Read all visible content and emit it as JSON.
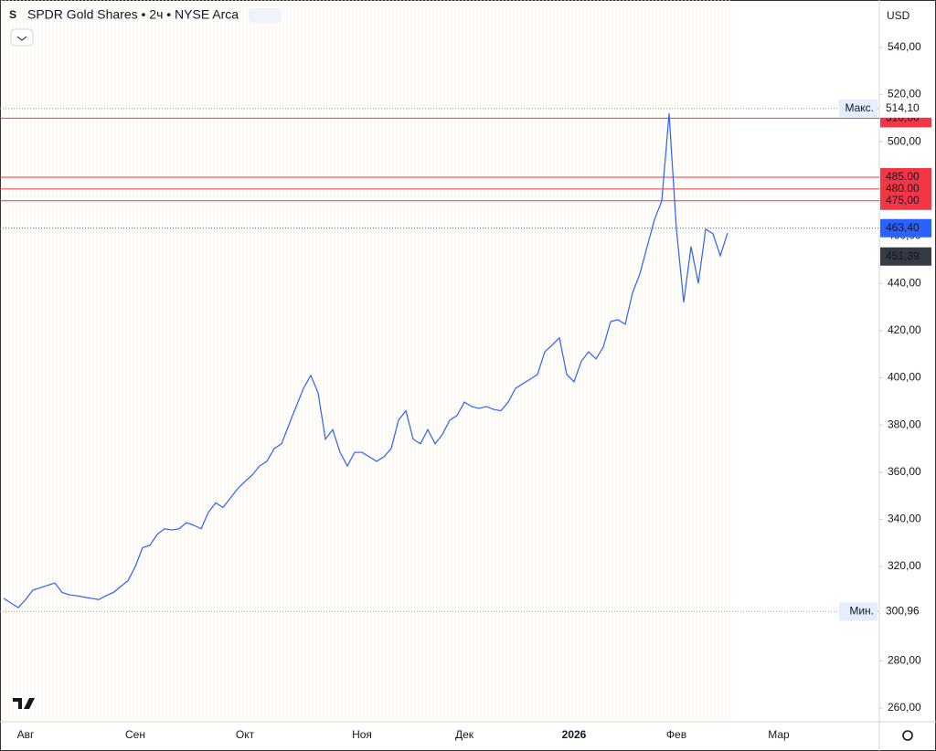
{
  "chart_data": {
    "type": "line",
    "title": "SPDR Gold Shares • 2ч • NYSE Arca",
    "currency": "USD",
    "categories": [
      null,
      null,
      null,
      "Авг",
      null,
      null,
      null,
      null,
      null,
      null,
      null,
      null,
      null,
      null,
      null,
      null,
      null,
      null,
      "Сен",
      null,
      null,
      null,
      null,
      null,
      null,
      null,
      null,
      null,
      null,
      null,
      null,
      null,
      null,
      "Окт",
      null,
      null,
      null,
      null,
      null,
      null,
      null,
      null,
      null,
      null,
      null,
      null,
      null,
      null,
      null,
      "Ноя",
      null,
      null,
      null,
      null,
      null,
      null,
      null,
      null,
      null,
      null,
      null,
      null,
      null,
      "Дек",
      null,
      null,
      null,
      null,
      null,
      null,
      null,
      null,
      null,
      null,
      null,
      null,
      null,
      null,
      "2026",
      null,
      null,
      null,
      null,
      null,
      null,
      null,
      null,
      null,
      null,
      null,
      null,
      null,
      "Фев",
      null,
      null,
      null,
      null,
      null,
      null,
      null,
      null,
      null,
      null,
      null,
      null,
      null,
      "Мар",
      null,
      null,
      null,
      null,
      null,
      null,
      null,
      null,
      null,
      null,
      null,
      null,
      null
    ],
    "series": [
      {
        "name": "SPDR Gold Shares",
        "color": "#2962ff",
        "values": [
          306.5,
          304.5,
          302.6,
          306,
          310,
          311,
          312,
          313,
          309,
          308,
          307.6,
          307,
          306.5,
          306,
          307.6,
          309,
          311.5,
          314,
          320,
          328,
          329,
          333.6,
          336,
          335.5,
          336,
          338.6,
          337.5,
          336,
          343,
          347,
          345,
          349,
          353,
          356,
          358.8,
          362.6,
          364.6,
          370,
          372,
          380,
          387.8,
          395.5,
          401,
          393.6,
          374,
          378,
          368.4,
          362.6,
          368.4,
          368.4,
          366.5,
          364.6,
          366.5,
          370,
          382,
          386,
          374,
          372,
          378,
          372,
          376,
          382,
          384,
          389.7,
          387.8,
          387,
          387.8,
          386.6,
          386,
          389.7,
          395.5,
          397.5,
          399.4,
          401.4,
          411,
          413.8,
          416.9,
          401.4,
          398.3,
          407,
          411,
          408,
          413,
          423.8,
          424.6,
          422.7,
          436,
          444,
          455.6,
          467,
          475,
          512,
          463,
          432,
          455.6,
          440,
          463,
          461,
          451.7,
          461.4,
          null,
          null,
          null,
          null,
          null,
          null,
          null,
          null,
          null,
          null,
          null,
          null,
          null,
          null,
          null,
          null,
          null,
          null,
          null,
          null
        ]
      }
    ],
    "ylim": [
      254.2,
      560.1
    ],
    "yticks": [
      {
        "value": 260,
        "label": "260,00"
      },
      {
        "value": 280,
        "label": "280,00"
      },
      {
        "value": 300,
        "label": "300,00"
      },
      {
        "value": 320,
        "label": "320,00"
      },
      {
        "value": 340,
        "label": "340,00"
      },
      {
        "value": 360,
        "label": "360,00"
      },
      {
        "value": 380,
        "label": "380,00"
      },
      {
        "value": 400,
        "label": "400,00"
      },
      {
        "value": 420,
        "label": "420,00"
      },
      {
        "value": 440,
        "label": "440,00"
      },
      {
        "value": 460,
        "label": "460,00"
      },
      {
        "value": 480,
        "label": "480,00"
      },
      {
        "value": 500,
        "label": "500,00"
      },
      {
        "value": 520,
        "label": "520,00"
      },
      {
        "value": 540,
        "label": "540,00"
      }
    ],
    "grid": false,
    "levels": [
      {
        "value": 510,
        "label": "510,00",
        "color": "#f23645"
      },
      {
        "value": 485,
        "label": "485,00",
        "color": "#f23645"
      },
      {
        "value": 480,
        "label": "480,00",
        "color": "#f23645"
      },
      {
        "value": 475,
        "label": "475,00",
        "color": "#f23645"
      }
    ],
    "max": {
      "label": "Макс.",
      "value": 514.1,
      "value_label": "514,10"
    },
    "min": {
      "label": "Мин.",
      "value": 300.96,
      "value_label": "300,96"
    },
    "last_price": {
      "value": 463.4,
      "label": "463,40",
      "color": "#2962ff"
    },
    "prev_price": {
      "value": 451.39,
      "label": "451,39",
      "color": "#363a45"
    }
  }
}
